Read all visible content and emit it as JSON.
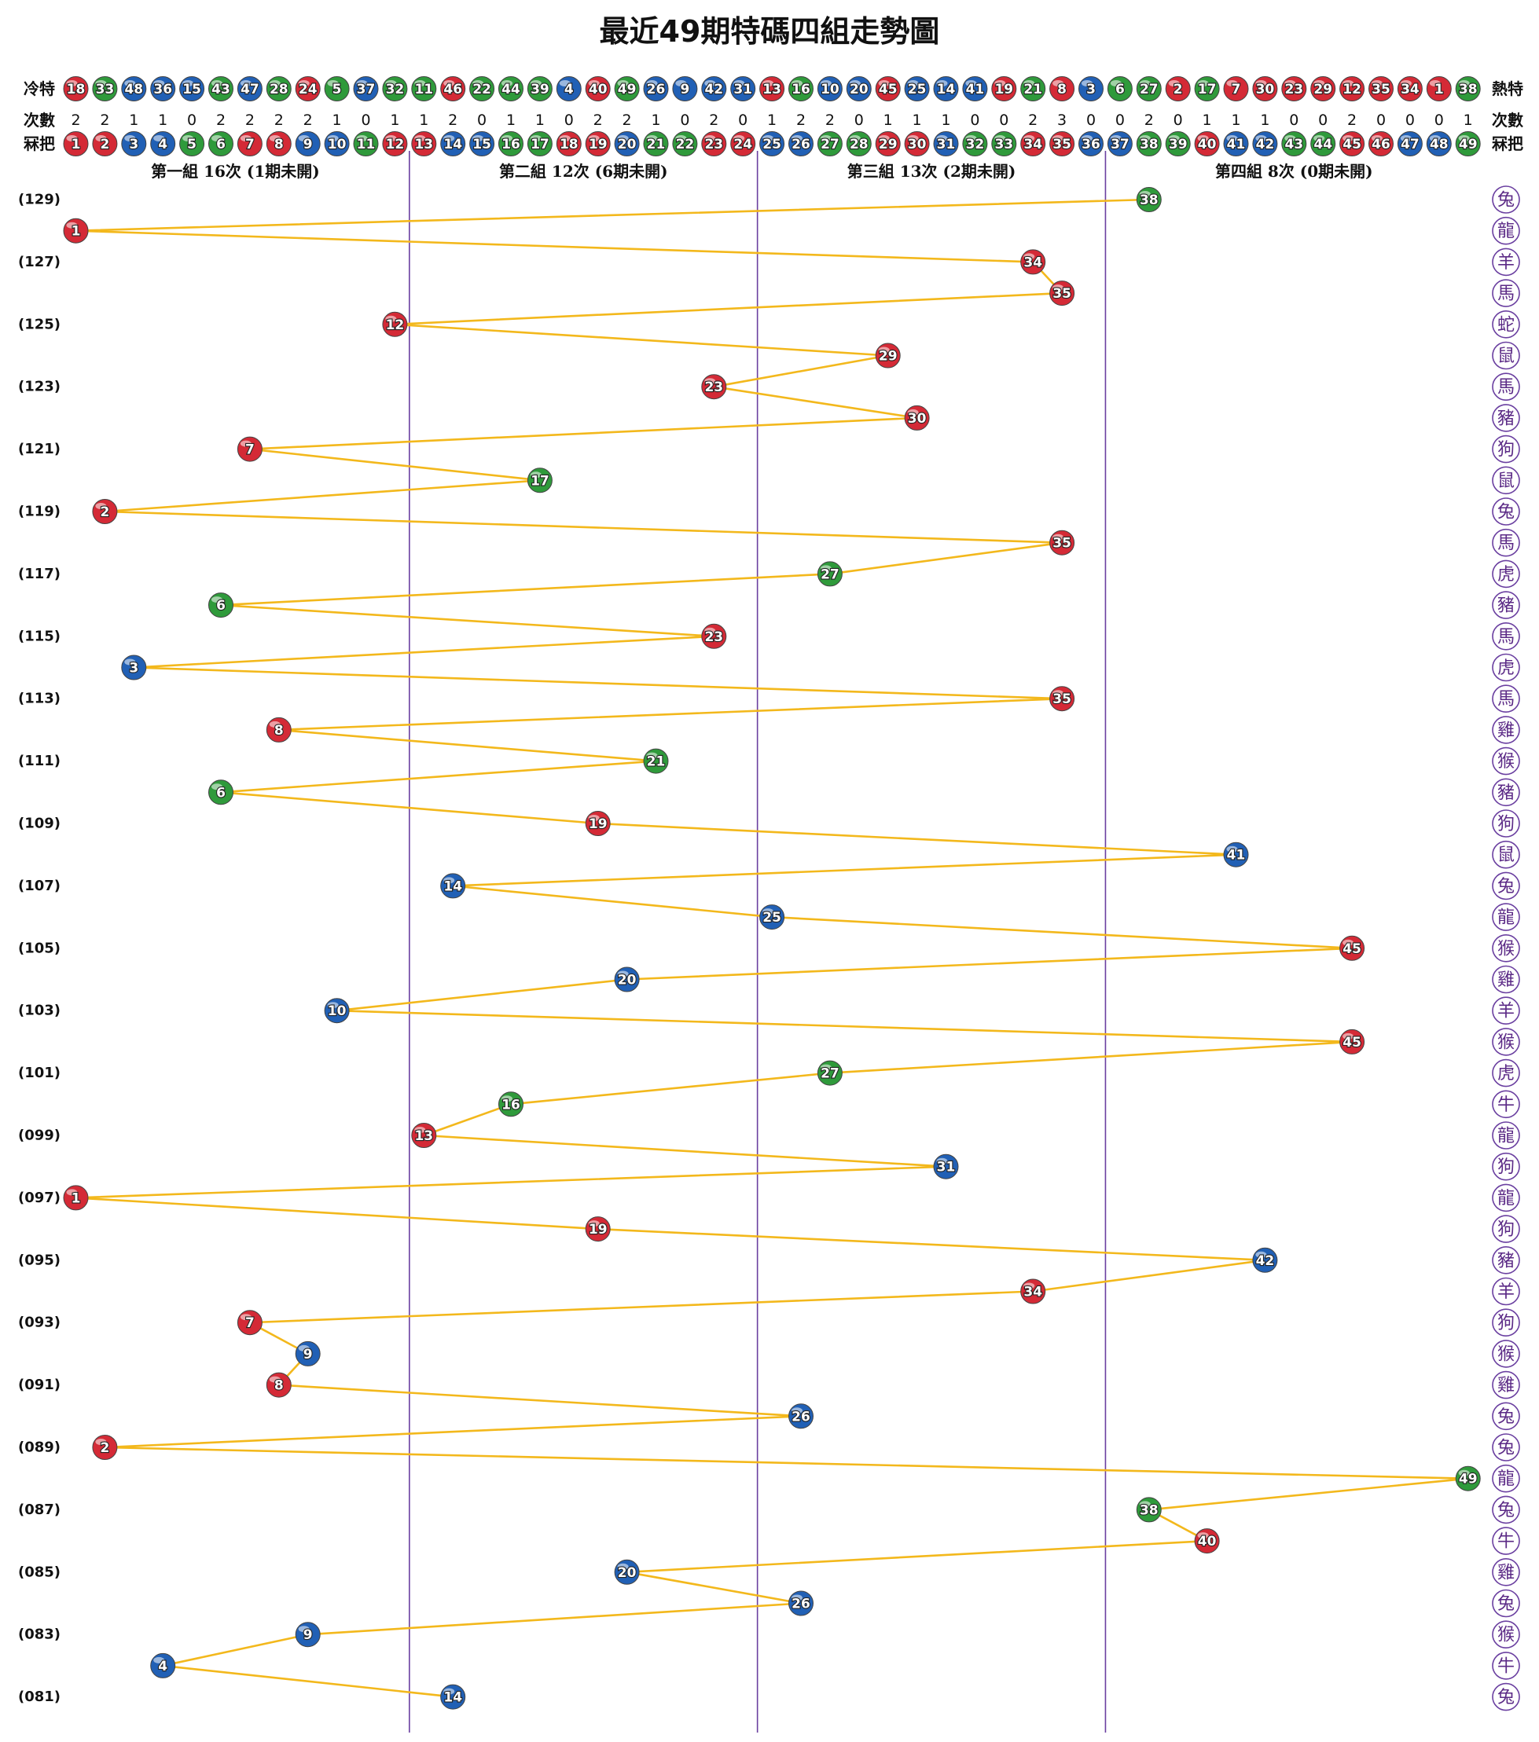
{
  "chart_data": {
    "type": "trend",
    "title": "最近49期特碼四組走勢圖",
    "labels": {
      "cold": "冷特",
      "hot": "熱特",
      "count": "次數",
      "number": "冧把"
    },
    "cold_hot": [
      18,
      33,
      48,
      36,
      15,
      43,
      47,
      28,
      24,
      5,
      37,
      32,
      11,
      46,
      22,
      44,
      39,
      4,
      40,
      49,
      26,
      9,
      42,
      31,
      13,
      16,
      10,
      20,
      45,
      25,
      14,
      41,
      19,
      21,
      8,
      3,
      6,
      27,
      2,
      17,
      7,
      30,
      23,
      29,
      12,
      35,
      34,
      1,
      38
    ],
    "counts": [
      2,
      2,
      1,
      1,
      0,
      2,
      2,
      2,
      2,
      1,
      0,
      1,
      1,
      2,
      0,
      1,
      1,
      0,
      2,
      2,
      1,
      0,
      2,
      0,
      1,
      2,
      2,
      0,
      1,
      1,
      1,
      0,
      0,
      2,
      3,
      0,
      0,
      2,
      0,
      1,
      1,
      1,
      0,
      0,
      2,
      0,
      0,
      0,
      1
    ],
    "numbers": [
      1,
      2,
      3,
      4,
      5,
      6,
      7,
      8,
      9,
      10,
      11,
      12,
      13,
      14,
      15,
      16,
      17,
      18,
      19,
      20,
      21,
      22,
      23,
      24,
      25,
      26,
      27,
      28,
      29,
      30,
      31,
      32,
      33,
      34,
      35,
      36,
      37,
      38,
      39,
      40,
      41,
      42,
      43,
      44,
      45,
      46,
      47,
      48,
      49
    ],
    "ball_colors": [
      "#d42a36",
      "#d42a36",
      "#2160b5",
      "#2160b5",
      "#2f9a3b",
      "#2f9a3b",
      "#d42a36",
      "#d42a36",
      "#2160b5",
      "#2160b5",
      "#2f9a3b",
      "#d42a36",
      "#d42a36",
      "#2160b5",
      "#2160b5",
      "#2f9a3b",
      "#2f9a3b",
      "#d42a36",
      "#d42a36",
      "#2160b5",
      "#2f9a3b",
      "#2f9a3b",
      "#d42a36",
      "#d42a36",
      "#2160b5",
      "#2160b5",
      "#2f9a3b",
      "#2f9a3b",
      "#d42a36",
      "#d42a36",
      "#2160b5",
      "#2f9a3b",
      "#2f9a3b",
      "#d42a36",
      "#d42a36",
      "#2160b5",
      "#2160b5",
      "#2f9a3b",
      "#2f9a3b",
      "#d42a36",
      "#2160b5",
      "#2160b5",
      "#2f9a3b",
      "#2f9a3b",
      "#d42a36",
      "#d42a36",
      "#2160b5",
      "#2160b5",
      "#2f9a3b"
    ],
    "groups": [
      "第一組 16次 (1期未開)",
      "第二組 12次 (6期未開)",
      "第三組 13次 (2期未開)",
      "第四組 8次 (0期未開)"
    ],
    "categories": [
      "(129)",
      null,
      "(127)",
      null,
      "(125)",
      null,
      "(123)",
      null,
      "(121)",
      null,
      "(119)",
      null,
      "(117)",
      null,
      "(115)",
      null,
      "(113)",
      null,
      "(111)",
      null,
      "(109)",
      null,
      "(107)",
      null,
      "(105)",
      null,
      "(103)",
      null,
      "(101)",
      null,
      "(099)",
      null,
      "(097)",
      null,
      "(095)",
      null,
      "(093)",
      null,
      "(091)",
      null,
      "(089)",
      null,
      "(087)",
      null,
      "(085)",
      null,
      "(083)",
      null,
      "(081)"
    ],
    "values": [
      38,
      1,
      34,
      35,
      12,
      29,
      23,
      30,
      7,
      17,
      2,
      35,
      27,
      6,
      23,
      3,
      35,
      8,
      21,
      6,
      19,
      41,
      14,
      25,
      45,
      20,
      10,
      45,
      27,
      16,
      13,
      31,
      1,
      19,
      42,
      34,
      7,
      9,
      8,
      26,
      2,
      49,
      38,
      40,
      20,
      26,
      9,
      4,
      14
    ],
    "zodiac": [
      "兔",
      "龍",
      "羊",
      "馬",
      "蛇",
      "鼠",
      "馬",
      "豬",
      "狗",
      "鼠",
      "兔",
      "馬",
      "虎",
      "豬",
      "馬",
      "虎",
      "馬",
      "雞",
      "猴",
      "豬",
      "狗",
      "鼠",
      "兔",
      "龍",
      "猴",
      "雞",
      "羊",
      "猴",
      "虎",
      "牛",
      "龍",
      "狗",
      "龍",
      "狗",
      "豬",
      "羊",
      "狗",
      "猴",
      "雞",
      "兔",
      "兔",
      "龍",
      "兔",
      "牛",
      "雞",
      "兔",
      "猴",
      "牛",
      "兔"
    ],
    "line_color": "#f3b81c",
    "divider_color": "#6a3fa0",
    "zodiac_color": "#6a3fa0"
  }
}
